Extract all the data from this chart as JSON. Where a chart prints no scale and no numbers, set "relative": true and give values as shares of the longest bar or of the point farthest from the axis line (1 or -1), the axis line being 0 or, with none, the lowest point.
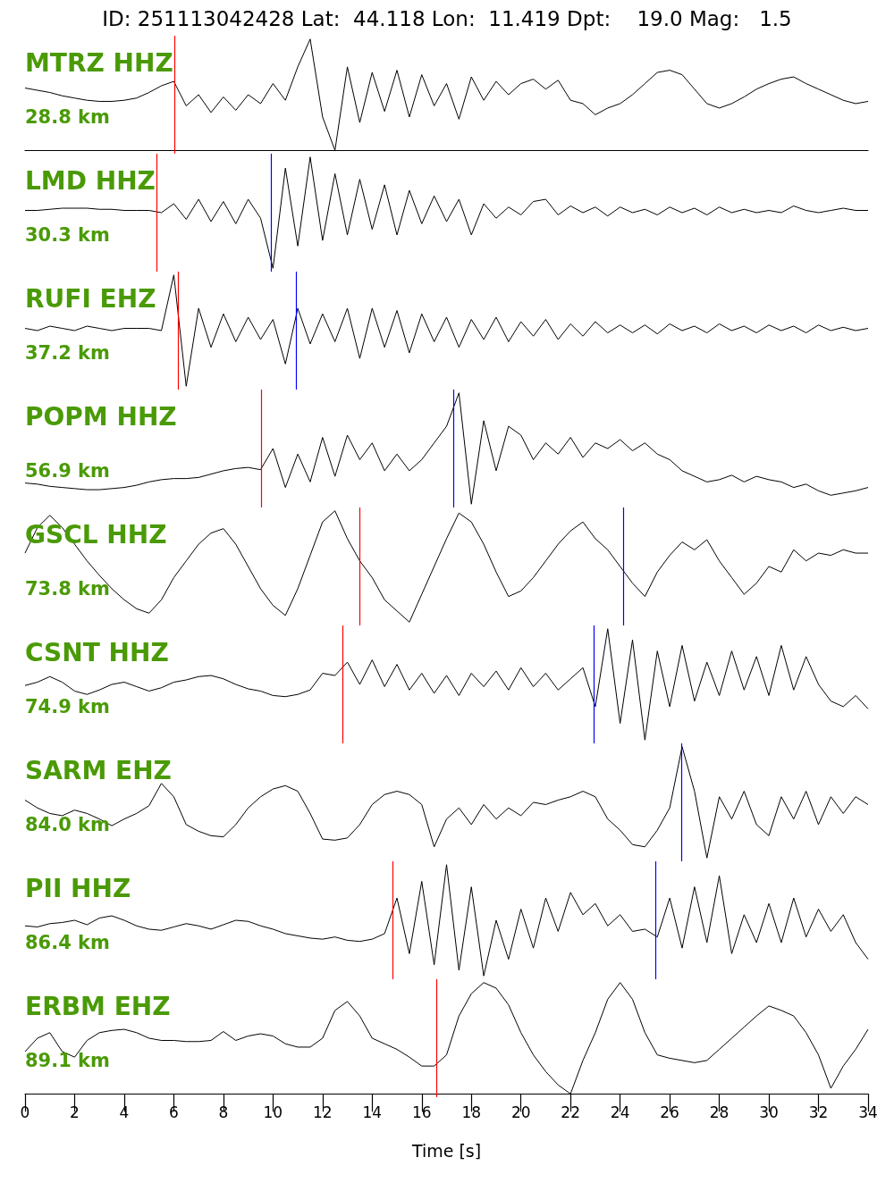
{
  "chart_data": [
    {
      "type": "line",
      "title": "ID: 251113042428 Lat:  44.118 Lon:  11.419 Dpt:    19.0 Mag:   1.5",
      "relative": true,
      "marker": "none",
      "tick_labels": false,
      "xlim": [
        0,
        34
      ],
      "annotations": [
        "MTRZ HHZ",
        "28.8 km"
      ],
      "ref_lines": [
        {
          "axis": "x",
          "value": 6.02,
          "color": "#ff0000"
        }
      ],
      "x": [
        0,
        0.5,
        1,
        1.5,
        2,
        2.5,
        3,
        3.5,
        4,
        4.5,
        5,
        5.5,
        6,
        6.5,
        7,
        7.5,
        8,
        8.5,
        9,
        9.5,
        10,
        10.5,
        11,
        11.5,
        12,
        12.5,
        13,
        13.5,
        14,
        14.5,
        15,
        15.5,
        16,
        16.5,
        17,
        17.5,
        18,
        18.5,
        19,
        19.5,
        20,
        20.5,
        21,
        21.5,
        22,
        22.5,
        23,
        23.5,
        24,
        24.5,
        25,
        25.5,
        26,
        26.5,
        27,
        27.5,
        28,
        28.5,
        29,
        29.5,
        30,
        30.5,
        31,
        31.5,
        32,
        32.5,
        33,
        33.5,
        34
      ],
      "series": [
        {
          "color": "#000000",
          "values": [
            0.56,
            0.54,
            0.52,
            0.49,
            0.47,
            0.45,
            0.44,
            0.44,
            0.45,
            0.47,
            0.52,
            0.58,
            0.62,
            0.4,
            0.5,
            0.34,
            0.48,
            0.36,
            0.5,
            0.42,
            0.6,
            0.45,
            0.75,
            1.0,
            0.3,
            0.0,
            0.75,
            0.25,
            0.7,
            0.35,
            0.72,
            0.3,
            0.68,
            0.4,
            0.6,
            0.28,
            0.66,
            0.45,
            0.62,
            0.5,
            0.6,
            0.64,
            0.55,
            0.63,
            0.45,
            0.42,
            0.32,
            0.38,
            0.42,
            0.5,
            0.6,
            0.7,
            0.72,
            0.68,
            0.55,
            0.42,
            0.38,
            0.42,
            0.48,
            0.55,
            0.6,
            0.64,
            0.66,
            0.6,
            0.55,
            0.5,
            0.45,
            0.42,
            0.44
          ]
        }
      ]
    },
    {
      "type": "line",
      "relative": true,
      "marker": "none",
      "tick_labels": false,
      "xlim": [
        0,
        34
      ],
      "annotations": [
        "LMD HHZ",
        "30.3 km"
      ],
      "ref_lines": [
        {
          "axis": "x",
          "value": 5.3,
          "color": "#ff0000"
        },
        {
          "axis": "x",
          "value": 9.91,
          "color": "#0000ff"
        }
      ],
      "x": [
        0,
        0.5,
        1,
        1.5,
        2,
        2.5,
        3,
        3.5,
        4,
        4.5,
        5,
        5.5,
        6,
        6.5,
        7,
        7.5,
        8,
        8.5,
        9,
        9.5,
        10,
        10.5,
        11,
        11.5,
        12,
        12.5,
        13,
        13.5,
        14,
        14.5,
        15,
        15.5,
        16,
        16.5,
        17,
        17.5,
        18,
        18.5,
        19,
        19.5,
        20,
        20.5,
        21,
        21.5,
        22,
        22.5,
        23,
        23.5,
        24,
        24.5,
        25,
        25.5,
        26,
        26.5,
        27,
        27.5,
        28,
        28.5,
        29,
        29.5,
        30,
        30.5,
        31,
        31.5,
        32,
        32.5,
        33,
        33.5,
        34
      ],
      "series": [
        {
          "color": "#000000",
          "values": [
            0.52,
            0.52,
            0.53,
            0.54,
            0.54,
            0.54,
            0.53,
            0.53,
            0.52,
            0.52,
            0.52,
            0.5,
            0.58,
            0.44,
            0.62,
            0.42,
            0.6,
            0.4,
            0.62,
            0.45,
            0.0,
            0.9,
            0.2,
            1.0,
            0.25,
            0.85,
            0.3,
            0.8,
            0.35,
            0.75,
            0.3,
            0.7,
            0.4,
            0.65,
            0.42,
            0.62,
            0.3,
            0.58,
            0.45,
            0.55,
            0.48,
            0.6,
            0.62,
            0.48,
            0.56,
            0.5,
            0.55,
            0.47,
            0.55,
            0.5,
            0.53,
            0.48,
            0.55,
            0.5,
            0.54,
            0.48,
            0.55,
            0.5,
            0.53,
            0.5,
            0.52,
            0.5,
            0.56,
            0.52,
            0.5,
            0.52,
            0.54,
            0.52,
            0.52
          ]
        }
      ]
    },
    {
      "type": "line",
      "relative": true,
      "marker": "none",
      "tick_labels": false,
      "xlim": [
        0,
        34
      ],
      "annotations": [
        "RUFI EHZ",
        "37.2 km"
      ],
      "ref_lines": [
        {
          "axis": "x",
          "value": 6.16,
          "color": "#ff0000"
        },
        {
          "axis": "x",
          "value": 10.92,
          "color": "#0000ff"
        }
      ],
      "x": [
        0,
        0.5,
        1,
        1.5,
        2,
        2.5,
        3,
        3.5,
        4,
        4.5,
        5,
        5.5,
        6,
        6.5,
        7,
        7.5,
        8,
        8.5,
        9,
        9.5,
        10,
        10.5,
        11,
        11.5,
        12,
        12.5,
        13,
        13.5,
        14,
        14.5,
        15,
        15.5,
        16,
        16.5,
        17,
        17.5,
        18,
        18.5,
        19,
        19.5,
        20,
        20.5,
        21,
        21.5,
        22,
        22.5,
        23,
        23.5,
        24,
        24.5,
        25,
        25.5,
        26,
        26.5,
        27,
        27.5,
        28,
        28.5,
        29,
        29.5,
        30,
        30.5,
        31,
        31.5,
        32,
        32.5,
        33,
        33.5,
        34
      ],
      "series": [
        {
          "color": "#000000",
          "values": [
            0.52,
            0.5,
            0.54,
            0.52,
            0.5,
            0.54,
            0.52,
            0.5,
            0.52,
            0.52,
            0.52,
            0.5,
            1.0,
            0.0,
            0.7,
            0.35,
            0.65,
            0.4,
            0.62,
            0.42,
            0.6,
            0.2,
            0.7,
            0.38,
            0.65,
            0.4,
            0.7,
            0.25,
            0.7,
            0.35,
            0.68,
            0.3,
            0.65,
            0.4,
            0.62,
            0.35,
            0.6,
            0.42,
            0.62,
            0.4,
            0.58,
            0.45,
            0.6,
            0.42,
            0.56,
            0.45,
            0.58,
            0.48,
            0.55,
            0.48,
            0.55,
            0.47,
            0.56,
            0.5,
            0.54,
            0.48,
            0.56,
            0.5,
            0.54,
            0.48,
            0.55,
            0.5,
            0.54,
            0.48,
            0.55,
            0.5,
            0.53,
            0.5,
            0.52
          ]
        }
      ]
    },
    {
      "type": "line",
      "relative": true,
      "marker": "none",
      "tick_labels": false,
      "xlim": [
        0,
        34
      ],
      "annotations": [
        "POPM HHZ",
        "56.9 km"
      ],
      "ref_lines": [
        {
          "axis": "x",
          "value": 9.52,
          "color": "#ff0000"
        },
        {
          "axis": "x",
          "value": 17.27,
          "color": "#0000ff"
        }
      ],
      "x": [
        0,
        0.5,
        1,
        1.5,
        2,
        2.5,
        3,
        3.5,
        4,
        4.5,
        5,
        5.5,
        6,
        6.5,
        7,
        7.5,
        8,
        8.5,
        9,
        9.5,
        10,
        10.5,
        11,
        11.5,
        12,
        12.5,
        13,
        13.5,
        14,
        14.5,
        15,
        15.5,
        16,
        16.5,
        17,
        17.5,
        18,
        18.5,
        19,
        19.5,
        20,
        20.5,
        21,
        21.5,
        22,
        22.5,
        23,
        23.5,
        24,
        24.5,
        25,
        25.5,
        26,
        26.5,
        27,
        27.5,
        28,
        28.5,
        29,
        29.5,
        30,
        30.5,
        31,
        31.5,
        32,
        32.5,
        33,
        33.5,
        34
      ],
      "series": [
        {
          "color": "#000000",
          "values": [
            0.19,
            0.18,
            0.16,
            0.15,
            0.14,
            0.13,
            0.13,
            0.14,
            0.15,
            0.17,
            0.2,
            0.22,
            0.23,
            0.23,
            0.24,
            0.27,
            0.3,
            0.32,
            0.33,
            0.31,
            0.5,
            0.15,
            0.45,
            0.2,
            0.6,
            0.25,
            0.62,
            0.4,
            0.55,
            0.3,
            0.45,
            0.3,
            0.4,
            0.55,
            0.7,
            1.0,
            0.0,
            0.75,
            0.3,
            0.7,
            0.62,
            0.4,
            0.55,
            0.45,
            0.6,
            0.42,
            0.55,
            0.5,
            0.58,
            0.48,
            0.55,
            0.45,
            0.4,
            0.3,
            0.25,
            0.2,
            0.22,
            0.26,
            0.2,
            0.25,
            0.22,
            0.2,
            0.15,
            0.18,
            0.12,
            0.08,
            0.1,
            0.12,
            0.15
          ]
        }
      ]
    },
    {
      "type": "line",
      "relative": true,
      "marker": "none",
      "tick_labels": false,
      "xlim": [
        0,
        34
      ],
      "annotations": [
        "GSCL HHZ",
        "73.8 km"
      ],
      "ref_lines": [
        {
          "axis": "x",
          "value": 13.48,
          "color": "#ff0000"
        },
        {
          "axis": "x",
          "value": 24.12,
          "color": "#0000ff"
        }
      ],
      "x": [
        0,
        0.5,
        1,
        1.5,
        2,
        2.5,
        3,
        3.5,
        4,
        4.5,
        5,
        5.5,
        6,
        6.5,
        7,
        7.5,
        8,
        8.5,
        9,
        9.5,
        10,
        10.5,
        11,
        11.5,
        12,
        12.5,
        13,
        13.5,
        14,
        14.5,
        15,
        15.5,
        16,
        16.5,
        17,
        17.5,
        18,
        18.5,
        19,
        19.5,
        20,
        20.5,
        21,
        21.5,
        22,
        22.5,
        23,
        23.5,
        24,
        24.5,
        25,
        25.5,
        26,
        26.5,
        27,
        27.5,
        28,
        28.5,
        29,
        29.5,
        30,
        30.5,
        31,
        31.5,
        32,
        32.5,
        33,
        33.5,
        34
      ],
      "series": [
        {
          "color": "#000000",
          "values": [
            0.62,
            0.85,
            0.96,
            0.85,
            0.7,
            0.55,
            0.42,
            0.3,
            0.2,
            0.12,
            0.08,
            0.2,
            0.4,
            0.55,
            0.7,
            0.8,
            0.84,
            0.7,
            0.5,
            0.3,
            0.15,
            0.06,
            0.3,
            0.6,
            0.9,
            1.0,
            0.75,
            0.55,
            0.4,
            0.2,
            0.1,
            0.0,
            0.25,
            0.5,
            0.75,
            0.98,
            0.9,
            0.7,
            0.45,
            0.23,
            0.28,
            0.4,
            0.55,
            0.7,
            0.82,
            0.9,
            0.75,
            0.65,
            0.5,
            0.35,
            0.23,
            0.45,
            0.6,
            0.72,
            0.65,
            0.74,
            0.55,
            0.4,
            0.25,
            0.35,
            0.5,
            0.45,
            0.65,
            0.55,
            0.62,
            0.6,
            0.65,
            0.62,
            0.62
          ]
        }
      ]
    },
    {
      "type": "line",
      "relative": true,
      "marker": "none",
      "tick_labels": false,
      "xlim": [
        0,
        34
      ],
      "annotations": [
        "CSNT HHZ",
        "74.9 km"
      ],
      "ref_lines": [
        {
          "axis": "x",
          "value": 12.8,
          "color": "#ff0000"
        },
        {
          "axis": "x",
          "value": 22.93,
          "color": "#0000ff"
        }
      ],
      "x": [
        0,
        0.5,
        1,
        1.5,
        2,
        2.5,
        3,
        3.5,
        4,
        4.5,
        5,
        5.5,
        6,
        6.5,
        7,
        7.5,
        8,
        8.5,
        9,
        9.5,
        10,
        10.5,
        11,
        11.5,
        12,
        12.5,
        13,
        13.5,
        14,
        14.5,
        15,
        15.5,
        16,
        16.5,
        17,
        17.5,
        18,
        18.5,
        19,
        19.5,
        20,
        20.5,
        21,
        21.5,
        22,
        22.5,
        23,
        23.5,
        24,
        24.5,
        25,
        25.5,
        26,
        26.5,
        27,
        27.5,
        28,
        28.5,
        29,
        29.5,
        30,
        30.5,
        31,
        31.5,
        32,
        32.5,
        33,
        33.5,
        34
      ],
      "series": [
        {
          "color": "#000000",
          "values": [
            0.49,
            0.52,
            0.57,
            0.52,
            0.44,
            0.41,
            0.45,
            0.5,
            0.52,
            0.48,
            0.44,
            0.47,
            0.52,
            0.54,
            0.57,
            0.58,
            0.55,
            0.5,
            0.46,
            0.44,
            0.4,
            0.39,
            0.41,
            0.45,
            0.6,
            0.58,
            0.7,
            0.5,
            0.72,
            0.48,
            0.68,
            0.45,
            0.6,
            0.42,
            0.58,
            0.4,
            0.6,
            0.48,
            0.62,
            0.45,
            0.65,
            0.48,
            0.6,
            0.45,
            0.55,
            0.65,
            0.3,
            1.0,
            0.15,
            0.9,
            0.0,
            0.8,
            0.3,
            0.85,
            0.35,
            0.7,
            0.4,
            0.8,
            0.45,
            0.75,
            0.4,
            0.85,
            0.45,
            0.75,
            0.5,
            0.35,
            0.3,
            0.4,
            0.28
          ]
        }
      ]
    },
    {
      "type": "line",
      "relative": true,
      "marker": "none",
      "tick_labels": false,
      "xlim": [
        0,
        34
      ],
      "annotations": [
        "SARM EHZ",
        "84.0 km"
      ],
      "ref_lines": [
        {
          "axis": "x",
          "value": 26.46,
          "color": "#0000ff"
        }
      ],
      "x": [
        0,
        0.5,
        1,
        1.5,
        2,
        2.5,
        3,
        3.5,
        4,
        4.5,
        5,
        5.5,
        6,
        6.5,
        7,
        7.5,
        8,
        8.5,
        9,
        9.5,
        10,
        10.5,
        11,
        11.5,
        12,
        12.5,
        13,
        13.5,
        14,
        14.5,
        15,
        15.5,
        16,
        16.5,
        17,
        17.5,
        18,
        18.5,
        19,
        19.5,
        20,
        20.5,
        21,
        21.5,
        22,
        22.5,
        23,
        23.5,
        24,
        24.5,
        25,
        25.5,
        26,
        26.5,
        27,
        27.5,
        28,
        28.5,
        29,
        29.5,
        30,
        30.5,
        31,
        31.5,
        32,
        32.5,
        33,
        33.5,
        34
      ],
      "series": [
        {
          "color": "#000000",
          "values": [
            0.52,
            0.45,
            0.4,
            0.38,
            0.43,
            0.4,
            0.35,
            0.29,
            0.35,
            0.4,
            0.47,
            0.67,
            0.55,
            0.3,
            0.24,
            0.2,
            0.19,
            0.3,
            0.45,
            0.55,
            0.62,
            0.65,
            0.6,
            0.4,
            0.17,
            0.16,
            0.18,
            0.3,
            0.48,
            0.57,
            0.6,
            0.57,
            0.48,
            0.1,
            0.35,
            0.45,
            0.3,
            0.48,
            0.35,
            0.45,
            0.38,
            0.5,
            0.48,
            0.52,
            0.55,
            0.6,
            0.55,
            0.35,
            0.25,
            0.12,
            0.1,
            0.25,
            0.45,
            1.0,
            0.6,
            0.0,
            0.55,
            0.35,
            0.6,
            0.3,
            0.2,
            0.55,
            0.35,
            0.6,
            0.3,
            0.55,
            0.4,
            0.55,
            0.48
          ]
        }
      ]
    },
    {
      "type": "line",
      "relative": true,
      "marker": "none",
      "tick_labels": false,
      "xlim": [
        0,
        34
      ],
      "annotations": [
        "PII HHZ",
        "86.4 km"
      ],
      "ref_lines": [
        {
          "axis": "x",
          "value": 14.82,
          "color": "#ff0000"
        },
        {
          "axis": "x",
          "value": 25.41,
          "color": "#0000ff"
        }
      ],
      "x": [
        0,
        0.5,
        1,
        1.5,
        2,
        2.5,
        3,
        3.5,
        4,
        4.5,
        5,
        5.5,
        6,
        6.5,
        7,
        7.5,
        8,
        8.5,
        9,
        9.5,
        10,
        10.5,
        11,
        11.5,
        12,
        12.5,
        13,
        13.5,
        14,
        14.5,
        15,
        15.5,
        16,
        16.5,
        17,
        17.5,
        18,
        18.5,
        19,
        19.5,
        20,
        20.5,
        21,
        21.5,
        22,
        22.5,
        23,
        23.5,
        24,
        24.5,
        25,
        25.5,
        26,
        26.5,
        27,
        27.5,
        28,
        28.5,
        29,
        29.5,
        30,
        30.5,
        31,
        31.5,
        32,
        32.5,
        33,
        33.5,
        34
      ],
      "series": [
        {
          "color": "#000000",
          "values": [
            0.45,
            0.44,
            0.47,
            0.48,
            0.5,
            0.46,
            0.52,
            0.54,
            0.5,
            0.45,
            0.42,
            0.41,
            0.44,
            0.47,
            0.45,
            0.42,
            0.46,
            0.5,
            0.49,
            0.45,
            0.42,
            0.38,
            0.36,
            0.34,
            0.33,
            0.35,
            0.32,
            0.31,
            0.33,
            0.38,
            0.7,
            0.2,
            0.85,
            0.1,
            1.0,
            0.05,
            0.8,
            0.0,
            0.5,
            0.15,
            0.6,
            0.25,
            0.7,
            0.4,
            0.75,
            0.55,
            0.65,
            0.45,
            0.55,
            0.4,
            0.42,
            0.35,
            0.7,
            0.25,
            0.8,
            0.3,
            0.9,
            0.2,
            0.55,
            0.3,
            0.65,
            0.3,
            0.7,
            0.35,
            0.6,
            0.4,
            0.55,
            0.3,
            0.15
          ]
        }
      ]
    },
    {
      "type": "line",
      "relative": true,
      "marker": "none",
      "tick_labels": "x",
      "xlabel": "Time [s]",
      "xlim": [
        0,
        34
      ],
      "xticks": [
        0,
        2,
        4,
        6,
        8,
        10,
        12,
        14,
        16,
        18,
        20,
        22,
        24,
        26,
        28,
        30,
        32,
        34
      ],
      "annotations": [
        "ERBM EHZ",
        "89.1 km"
      ],
      "ref_lines": [
        {
          "axis": "x",
          "value": 16.58,
          "color": "#ff0000"
        }
      ],
      "x": [
        0,
        0.5,
        1,
        1.5,
        2,
        2.5,
        3,
        3.5,
        4,
        4.5,
        5,
        5.5,
        6,
        6.5,
        7,
        7.5,
        8,
        8.5,
        9,
        9.5,
        10,
        10.5,
        11,
        11.5,
        12,
        12.5,
        13,
        13.5,
        14,
        14.5,
        15,
        15.5,
        16,
        16.5,
        17,
        17.5,
        18,
        18.5,
        19,
        19.5,
        20,
        20.5,
        21,
        21.5,
        22,
        22.5,
        23,
        23.5,
        24,
        24.5,
        25,
        25.5,
        26,
        26.5,
        27,
        27.5,
        28,
        28.5,
        29,
        29.5,
        30,
        30.5,
        31,
        31.5,
        32,
        32.5,
        33,
        33.5,
        34
      ],
      "series": [
        {
          "color": "#000000",
          "values": [
            0.38,
            0.5,
            0.55,
            0.38,
            0.33,
            0.48,
            0.55,
            0.57,
            0.58,
            0.55,
            0.5,
            0.48,
            0.48,
            0.47,
            0.47,
            0.48,
            0.56,
            0.48,
            0.52,
            0.54,
            0.52,
            0.45,
            0.42,
            0.42,
            0.5,
            0.75,
            0.83,
            0.7,
            0.5,
            0.45,
            0.4,
            0.33,
            0.25,
            0.25,
            0.35,
            0.7,
            0.9,
            1.0,
            0.95,
            0.8,
            0.55,
            0.35,
            0.2,
            0.08,
            0.0,
            0.3,
            0.55,
            0.85,
            1.0,
            0.85,
            0.55,
            0.35,
            0.32,
            0.3,
            0.28,
            0.3,
            0.4,
            0.5,
            0.6,
            0.7,
            0.79,
            0.75,
            0.7,
            0.55,
            0.35,
            0.05,
            0.25,
            0.4,
            0.58
          ]
        }
      ]
    }
  ]
}
